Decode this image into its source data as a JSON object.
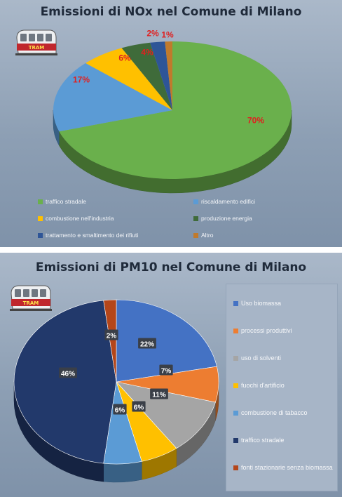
{
  "chart_data": [
    {
      "type": "pie",
      "title": "Emissioni di NOx nel Comune di Milano",
      "categories": [
        "traffico stradale",
        "riscaldamento edifici",
        "combustione nell'industria",
        "produzione energia",
        "trattamento e smaltimento dei rifiuti",
        "Altro"
      ],
      "values": [
        70,
        17,
        6,
        4,
        2,
        1
      ],
      "labels": [
        "70%",
        "17%",
        "6%",
        "4%",
        "2%",
        "1%"
      ],
      "colors": [
        "#6ab04c",
        "#5b9bd5",
        "#ffc000",
        "#3f6b3a",
        "#2e5597",
        "#c07a2c"
      ],
      "legend_position": "bottom"
    },
    {
      "type": "pie",
      "title": "Emissioni di PM10 nel Comune di Milano",
      "categories": [
        "Uso biomassa",
        "processi produttivi",
        "uso di solventi",
        "fuochi d'artificio",
        "combustione di tabacco",
        "traffico stradale",
        "fonti stazionarie senza biomassa"
      ],
      "values": [
        22,
        7,
        11,
        6,
        6,
        46,
        2
      ],
      "labels": [
        "22%",
        "7%",
        "11%",
        "6%",
        "6%",
        "46%",
        "2%"
      ],
      "colors": [
        "#4472c4",
        "#ed7d31",
        "#a5a5a5",
        "#ffc000",
        "#5b9bd5",
        "#22396b",
        "#b4461a"
      ],
      "legend_position": "right"
    }
  ],
  "logo": {
    "text": "TRAM"
  }
}
